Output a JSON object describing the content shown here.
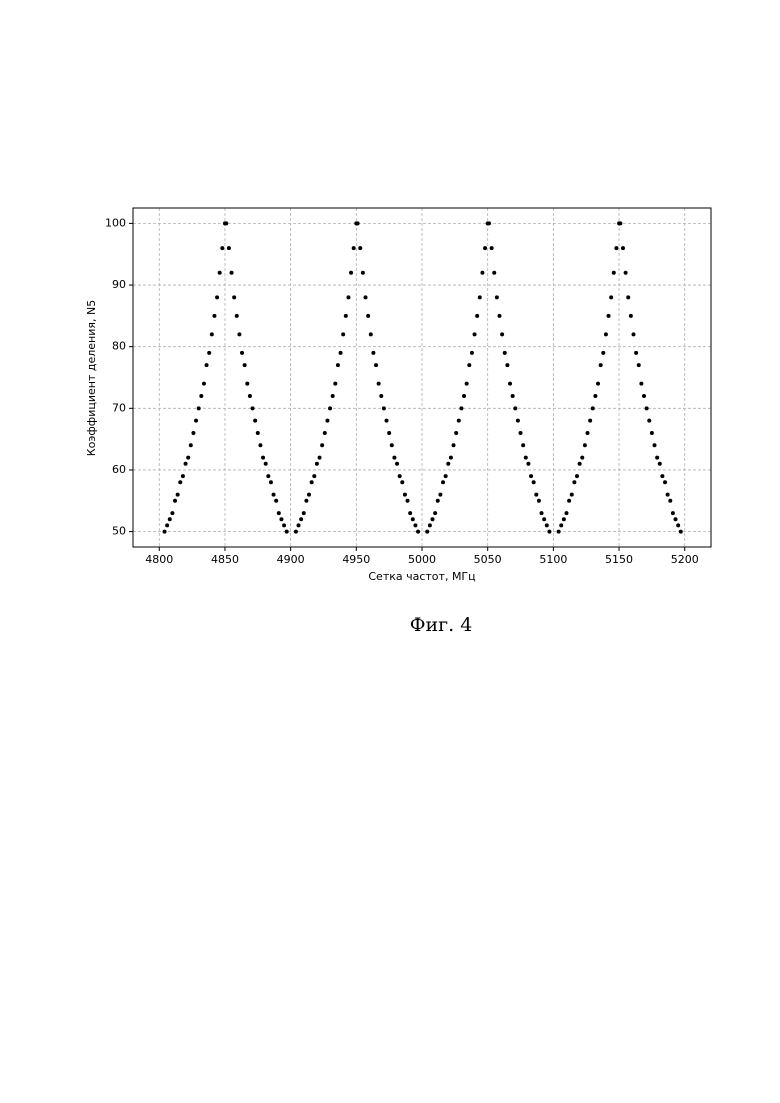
{
  "chart_data": {
    "type": "scatter",
    "x_label": "Сетка частот, МГц",
    "y_label": "Коэффициент деления, N5",
    "color": "#000000",
    "grid": true,
    "xlim": [
      4780,
      5220
    ],
    "ylim": [
      47.5,
      102.5
    ],
    "xticks": [
      4800,
      4850,
      4900,
      4950,
      5000,
      5050,
      5100,
      5150,
      5200
    ],
    "yticks": [
      50,
      60,
      70,
      80,
      90,
      100
    ],
    "x": [
      4804,
      4806,
      4808,
      4810,
      4812,
      4814,
      4816,
      4818,
      4820,
      4822,
      4824,
      4826,
      4828,
      4830,
      4832,
      4834,
      4836,
      4838,
      4840,
      4842,
      4844,
      4846,
      4848,
      4850,
      4851,
      4853,
      4855,
      4857,
      4859,
      4861,
      4863,
      4865,
      4867,
      4869,
      4871,
      4873,
      4875,
      4877,
      4879,
      4881,
      4883,
      4885,
      4887,
      4889,
      4891,
      4893,
      4895,
      4897,
      4904,
      4906,
      4908,
      4910,
      4912,
      4914,
      4916,
      4918,
      4920,
      4922,
      4924,
      4926,
      4928,
      4930,
      4932,
      4934,
      4936,
      4938,
      4940,
      4942,
      4944,
      4946,
      4948,
      4950,
      4951,
      4953,
      4955,
      4957,
      4959,
      4961,
      4963,
      4965,
      4967,
      4969,
      4971,
      4973,
      4975,
      4977,
      4979,
      4981,
      4983,
      4985,
      4987,
      4989,
      4991,
      4993,
      4995,
      4997,
      5004,
      5006,
      5008,
      5010,
      5012,
      5014,
      5016,
      5018,
      5020,
      5022,
      5024,
      5026,
      5028,
      5030,
      5032,
      5034,
      5036,
      5038,
      5040,
      5042,
      5044,
      5046,
      5048,
      5050,
      5051,
      5053,
      5055,
      5057,
      5059,
      5061,
      5063,
      5065,
      5067,
      5069,
      5071,
      5073,
      5075,
      5077,
      5079,
      5081,
      5083,
      5085,
      5087,
      5089,
      5091,
      5093,
      5095,
      5097,
      5104,
      5106,
      5108,
      5110,
      5112,
      5114,
      5116,
      5118,
      5120,
      5122,
      5124,
      5126,
      5128,
      5130,
      5132,
      5134,
      5136,
      5138,
      5140,
      5142,
      5144,
      5146,
      5148,
      5150,
      5151,
      5153,
      5155,
      5157,
      5159,
      5161,
      5163,
      5165,
      5167,
      5169,
      5171,
      5173,
      5175,
      5177,
      5179,
      5181,
      5183,
      5185,
      5187,
      5189,
      5191,
      5193,
      5195,
      5197
    ],
    "values": [
      50,
      51,
      52,
      53,
      55,
      56,
      58,
      59,
      61,
      62,
      64,
      66,
      68,
      70,
      72,
      74,
      77,
      79,
      82,
      85,
      88,
      92,
      96,
      100,
      100,
      96,
      92,
      88,
      85,
      82,
      79,
      77,
      74,
      72,
      70,
      68,
      66,
      64,
      62,
      61,
      59,
      58,
      56,
      55,
      53,
      52,
      51,
      50,
      50,
      51,
      52,
      53,
      55,
      56,
      58,
      59,
      61,
      62,
      64,
      66,
      68,
      70,
      72,
      74,
      77,
      79,
      82,
      85,
      88,
      92,
      96,
      100,
      100,
      96,
      92,
      88,
      85,
      82,
      79,
      77,
      74,
      72,
      70,
      68,
      66,
      64,
      62,
      61,
      59,
      58,
      56,
      55,
      53,
      52,
      51,
      50,
      50,
      51,
      52,
      53,
      55,
      56,
      58,
      59,
      61,
      62,
      64,
      66,
      68,
      70,
      72,
      74,
      77,
      79,
      82,
      85,
      88,
      92,
      96,
      100,
      100,
      96,
      92,
      88,
      85,
      82,
      79,
      77,
      74,
      72,
      70,
      68,
      66,
      64,
      62,
      61,
      59,
      58,
      56,
      55,
      53,
      52,
      51,
      50,
      50,
      51,
      52,
      53,
      55,
      56,
      58,
      59,
      61,
      62,
      64,
      66,
      68,
      70,
      72,
      74,
      77,
      79,
      82,
      85,
      88,
      92,
      96,
      100,
      100,
      96,
      92,
      88,
      85,
      82,
      79,
      77,
      74,
      72,
      70,
      68,
      66,
      64,
      62,
      61,
      59,
      58,
      56,
      55,
      53,
      52,
      51,
      50
    ]
  },
  "caption": "Фиг. 4"
}
